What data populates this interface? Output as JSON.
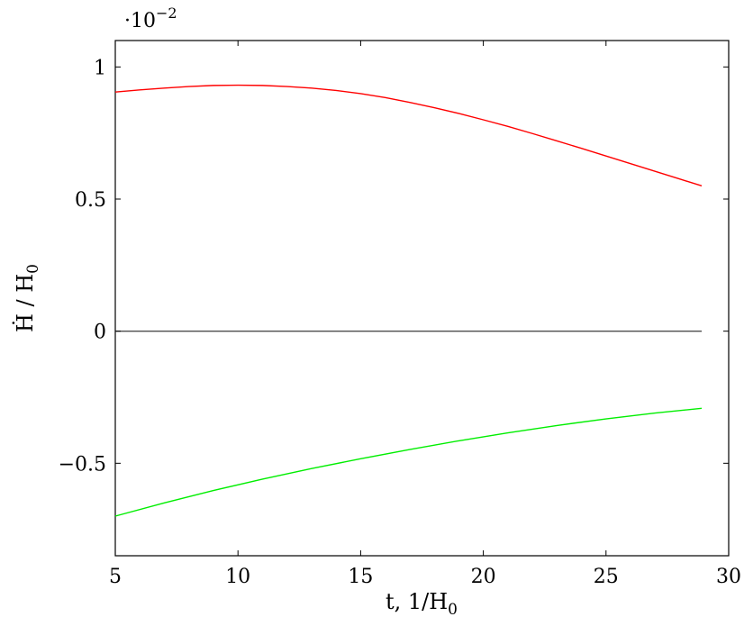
{
  "chart_data": {
    "type": "line",
    "title": "",
    "xlabel": "t, 1/H",
    "xlabel_sub": "0",
    "ylabel": "Ḣ / H",
    "ylabel_sub": "0",
    "y_scale_note": "·10",
    "y_scale_exp": "−2",
    "xlim": [
      5,
      30
    ],
    "ylim": [
      -0.85,
      1.1
    ],
    "x_ticks": [
      5,
      10,
      15,
      20,
      25,
      30
    ],
    "x_tick_labels": [
      "5",
      "10",
      "15",
      "20",
      "25",
      "30"
    ],
    "y_ticks": [
      -0.5,
      0,
      0.5,
      1
    ],
    "y_tick_labels": [
      "−0.5",
      "0",
      "0.5",
      "1"
    ],
    "grid": false,
    "series": [
      {
        "color": "#ff0000",
        "x": [
          5,
          6,
          7,
          8,
          9,
          10,
          11,
          12,
          13,
          14,
          15,
          16,
          17,
          18,
          19,
          20,
          21,
          22,
          23,
          24,
          25,
          26,
          27,
          28,
          28.9
        ],
        "y": [
          0.905,
          0.913,
          0.92,
          0.926,
          0.93,
          0.931,
          0.93,
          0.926,
          0.92,
          0.911,
          0.899,
          0.884,
          0.866,
          0.846,
          0.824,
          0.8,
          0.775,
          0.748,
          0.72,
          0.692,
          0.663,
          0.634,
          0.605,
          0.576,
          0.55
        ]
      },
      {
        "color": "#4d4d4d",
        "x": [
          5,
          28.9
        ],
        "y": [
          0,
          0
        ]
      },
      {
        "color": "#00ee00",
        "x": [
          5,
          7,
          9,
          11,
          13,
          15,
          17,
          19,
          21,
          23,
          25,
          27,
          28.9
        ],
        "y": [
          -0.7,
          -0.65,
          -0.603,
          -0.56,
          -0.52,
          -0.483,
          -0.448,
          -0.415,
          -0.385,
          -0.357,
          -0.332,
          -0.31,
          -0.292
        ]
      }
    ]
  }
}
